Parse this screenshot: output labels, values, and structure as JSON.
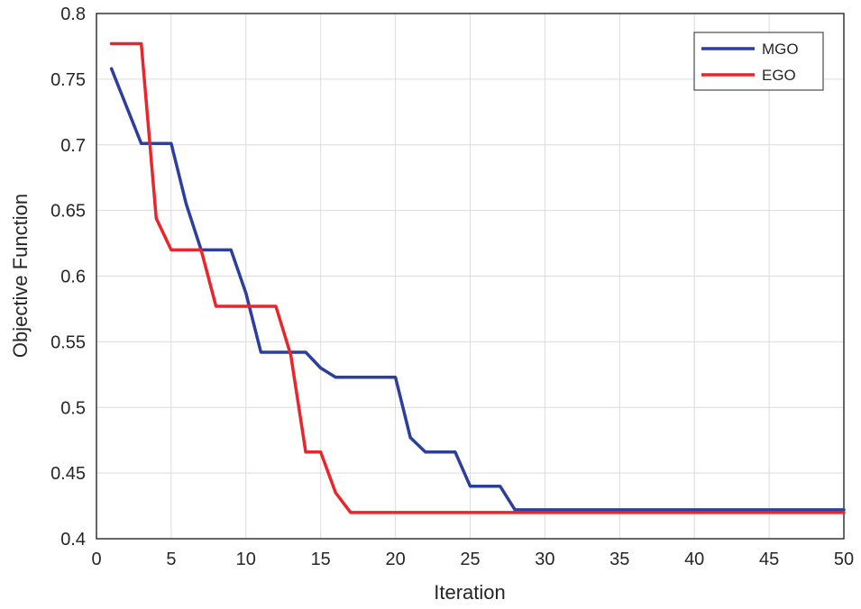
{
  "chart_data": {
    "type": "line",
    "title": "",
    "xlabel": "Iteration",
    "ylabel": "Objective Function",
    "xlim": [
      0,
      50
    ],
    "ylim": [
      0.4,
      0.8
    ],
    "xticks": [
      "0",
      "5",
      "10",
      "15",
      "20",
      "25",
      "30",
      "35",
      "40",
      "45",
      "50"
    ],
    "yticks": [
      "0.4",
      "0.45",
      "0.5",
      "0.55",
      "0.6",
      "0.65",
      "0.7",
      "0.75",
      "0.8"
    ],
    "grid": true,
    "legend_position": "top-right",
    "series": [
      {
        "name": "MGO",
        "color": "#2d3f9e",
        "x": [
          1,
          3,
          5,
          6,
          7,
          9,
          10,
          11,
          14,
          15,
          16,
          20,
          21,
          22,
          24,
          25,
          27,
          28,
          50
        ],
        "y": [
          0.758,
          0.701,
          0.701,
          0.655,
          0.62,
          0.62,
          0.587,
          0.542,
          0.542,
          0.53,
          0.523,
          0.523,
          0.477,
          0.466,
          0.466,
          0.44,
          0.44,
          0.422,
          0.422
        ]
      },
      {
        "name": "EGO",
        "color": "#e8262b",
        "x": [
          1,
          3,
          4,
          5,
          7,
          8,
          12,
          13,
          14,
          15,
          16,
          17,
          50
        ],
        "y": [
          0.777,
          0.777,
          0.644,
          0.62,
          0.62,
          0.577,
          0.577,
          0.54,
          0.466,
          0.466,
          0.435,
          0.42,
          0.42
        ]
      }
    ]
  }
}
